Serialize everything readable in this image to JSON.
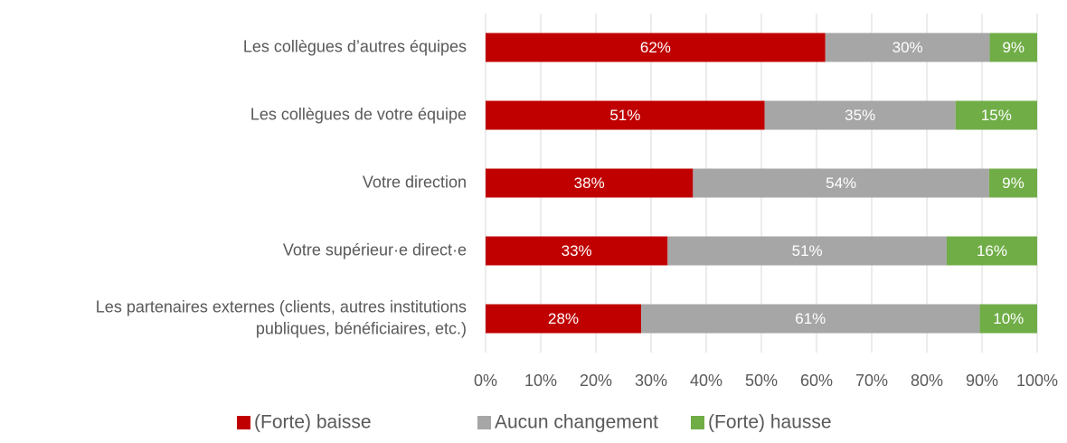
{
  "chart_data": {
    "type": "stacked_barh",
    "categories": [
      "Les collègues d’autres équipes",
      "Les collègues de votre équipe",
      "Votre direction",
      "Votre supérieur·e direct·e",
      "Les partenaires externes (clients, autres institutions\npubliques, bénéficiaires, etc.)"
    ],
    "series": [
      {
        "name": "(Forte) baisse",
        "color": "#c00000",
        "values": [
          61.6,
          50.6,
          37.6,
          33.0,
          28.2
        ],
        "value_labels": [
          "62%",
          "51%",
          "38%",
          "33%",
          "28%"
        ]
      },
      {
        "name": "Aucun changement",
        "color": "#a6a6a6",
        "values": [
          29.8,
          34.6,
          53.7,
          50.6,
          61.4
        ],
        "value_labels": [
          "30%",
          "35%",
          "54%",
          "51%",
          "61%"
        ]
      },
      {
        "name": "(Forte) hausse",
        "color": "#70ad47",
        "values": [
          8.6,
          14.8,
          8.7,
          16.4,
          10.4
        ],
        "value_labels": [
          "9%",
          "15%",
          "9%",
          "16%",
          "10%"
        ]
      }
    ],
    "xlim": [
      0,
      100
    ],
    "xticks": [
      {
        "value": 0,
        "label": "0%"
      },
      {
        "value": 10,
        "label": "10%"
      },
      {
        "value": 20,
        "label": "20%"
      },
      {
        "value": 30,
        "label": "30%"
      },
      {
        "value": 40,
        "label": "40%"
      },
      {
        "value": 50,
        "label": "50%"
      },
      {
        "value": 60,
        "label": "60%"
      },
      {
        "value": 70,
        "label": "70%"
      },
      {
        "value": 80,
        "label": "80%"
      },
      {
        "value": 90,
        "label": "90%"
      },
      {
        "value": 100,
        "label": "100%"
      }
    ],
    "grid": true,
    "legend": "bottom"
  }
}
